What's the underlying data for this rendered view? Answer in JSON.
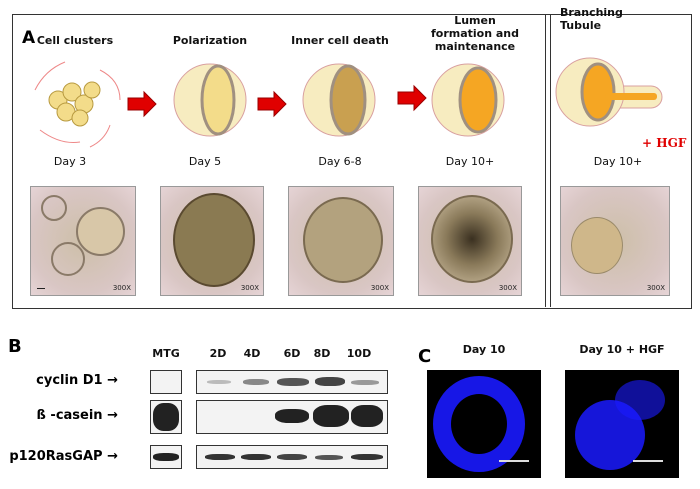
{
  "panel_a": {
    "label": "A",
    "stages": [
      {
        "title": "Cell clusters",
        "day": "Day 3",
        "magnification": "300X"
      },
      {
        "title": "Polarization",
        "day": "Day 5",
        "magnification": "300X"
      },
      {
        "title": "Inner cell death",
        "day": "Day 6-8",
        "magnification": "300X"
      },
      {
        "title": "Lumen formation and maintenance",
        "day": "Day 10+",
        "magnification": "300X"
      },
      {
        "title": "Branching Tubule",
        "day": "Day 10+",
        "magnification": "300X",
        "treatment": "+ HGF"
      }
    ]
  },
  "panel_b": {
    "label": "B",
    "control_lane": "MTG",
    "lanes": [
      "2D",
      "4D",
      "6D",
      "8D",
      "10D"
    ],
    "rows": [
      {
        "protein": "cyclin D1",
        "arrow": "→"
      },
      {
        "protein": "ß -casein",
        "arrow": "→"
      },
      {
        "protein": "p120RasGAP",
        "arrow": "→"
      }
    ]
  },
  "panel_c": {
    "label": "C",
    "images": [
      {
        "title": "Day 10"
      },
      {
        "title": "Day 10 + HGF"
      }
    ],
    "stain_color": "#1a1aff"
  },
  "colors": {
    "arrow": "#e00000",
    "hgf": "#e00000",
    "lumen": "#f5a623"
  }
}
